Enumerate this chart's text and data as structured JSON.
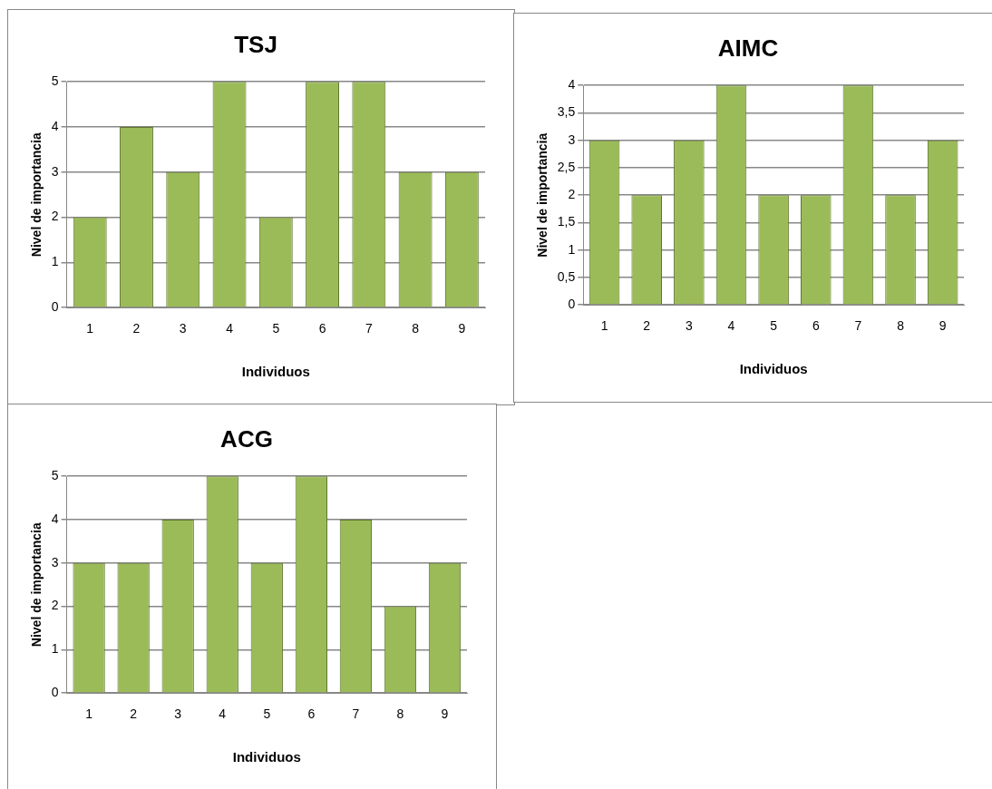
{
  "chart_data": [
    {
      "type": "bar",
      "title": "TSJ",
      "xlabel": "Individuos",
      "ylabel": "Nivel de importancia",
      "categories": [
        "1",
        "2",
        "3",
        "4",
        "5",
        "6",
        "7",
        "8",
        "9"
      ],
      "values": [
        2,
        4,
        3,
        5,
        2,
        5,
        5,
        3,
        3
      ],
      "color": "#9bbb59",
      "ylim": [
        0,
        5
      ],
      "yticks": [
        0,
        1,
        2,
        3,
        4,
        5
      ],
      "grid": "y",
      "legend": false
    },
    {
      "type": "bar",
      "title": "AIMC",
      "xlabel": "Individuos",
      "ylabel": "Nivel de importancia",
      "categories": [
        "1",
        "2",
        "3",
        "4",
        "5",
        "6",
        "7",
        "8",
        "9"
      ],
      "values": [
        3,
        2,
        3,
        4,
        2,
        2,
        4,
        2,
        3
      ],
      "color": "#9bbb59",
      "ylim": [
        0,
        4
      ],
      "yticks": [
        0,
        {
          "value": 0.5,
          "label": "0,5"
        },
        1,
        {
          "value": 1.5,
          "label": "1,5"
        },
        2,
        {
          "value": 2.5,
          "label": "2,5"
        },
        3,
        {
          "value": 3.5,
          "label": "3,5"
        },
        4
      ],
      "grid": "y",
      "legend": false
    },
    {
      "type": "bar",
      "title": "ACG",
      "xlabel": "Individuos",
      "ylabel": "Nivel de importancia",
      "categories": [
        "1",
        "2",
        "3",
        "4",
        "5",
        "6",
        "7",
        "8",
        "9"
      ],
      "values": [
        3,
        3,
        4,
        5,
        3,
        5,
        4,
        2,
        3
      ],
      "color": "#9bbb59",
      "ylim": [
        0,
        5
      ],
      "yticks": [
        0,
        1,
        2,
        3,
        4,
        5
      ],
      "grid": "y",
      "legend": false
    }
  ]
}
